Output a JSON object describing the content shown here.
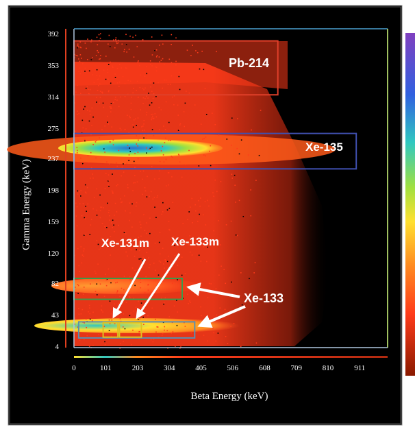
{
  "chart_data": {
    "type": "heatmap",
    "title": "",
    "xlabel": "Beta Energy (keV)",
    "ylabel": "Gamma Energy (keV)",
    "xlim": [
      0,
      1000
    ],
    "ylim": [
      4,
      400
    ],
    "x_ticks": [
      "0",
      "101",
      "203",
      "304",
      "405",
      "506",
      "608",
      "709",
      "810",
      "911"
    ],
    "y_ticks": [
      "392",
      "353",
      "314",
      "275",
      "237",
      "198",
      "159",
      "120",
      "82",
      "43",
      "4"
    ],
    "regions": [
      {
        "label": "Pb-214",
        "beta_range": [
          0,
          650
        ],
        "gamma_range": [
          318,
          385
        ],
        "color": "#e0402a"
      },
      {
        "label": "Xe-135",
        "beta_range": [
          0,
          900
        ],
        "gamma_range": [
          226,
          270
        ],
        "color": "#4050b0"
      },
      {
        "label": "Xe-133",
        "beta_range": [
          0,
          345
        ],
        "gamma_range": [
          64,
          90
        ],
        "color": "#3c9a4a"
      },
      {
        "label": "Xe-133",
        "beta_range": [
          15,
          385
        ],
        "gamma_range": [
          16,
          36
        ],
        "color": "#5a8fb0"
      },
      {
        "label": "Xe-131m",
        "beta_range": [
          93,
          140
        ],
        "gamma_range": [
          17,
          35
        ],
        "color": "#e0c020"
      },
      {
        "label": "Xe-133m",
        "beta_range": [
          145,
          215
        ],
        "gamma_range": [
          17,
          35
        ],
        "color": "#e0c020"
      }
    ],
    "hotspots": [
      {
        "beta_range": [
          15,
          380
        ],
        "gamma_value": 245,
        "peak_color": "#2a6fd0"
      },
      {
        "beta_range": [
          10,
          200
        ],
        "gamma_value": 30,
        "peak_color": "#2a6fd0"
      }
    ],
    "colormap": [
      "#000000",
      "#8a1a00",
      "#ff3b1a",
      "#ff8a20",
      "#ffe030",
      "#a0e040",
      "#30c8c0",
      "#3060e0",
      "#8040c0"
    ]
  },
  "annotations": {
    "pb214": "Pb-214",
    "xe135": "Xe-135",
    "xe131m": "Xe-131m",
    "xe133m": "Xe-133m",
    "xe133": "Xe-133"
  }
}
